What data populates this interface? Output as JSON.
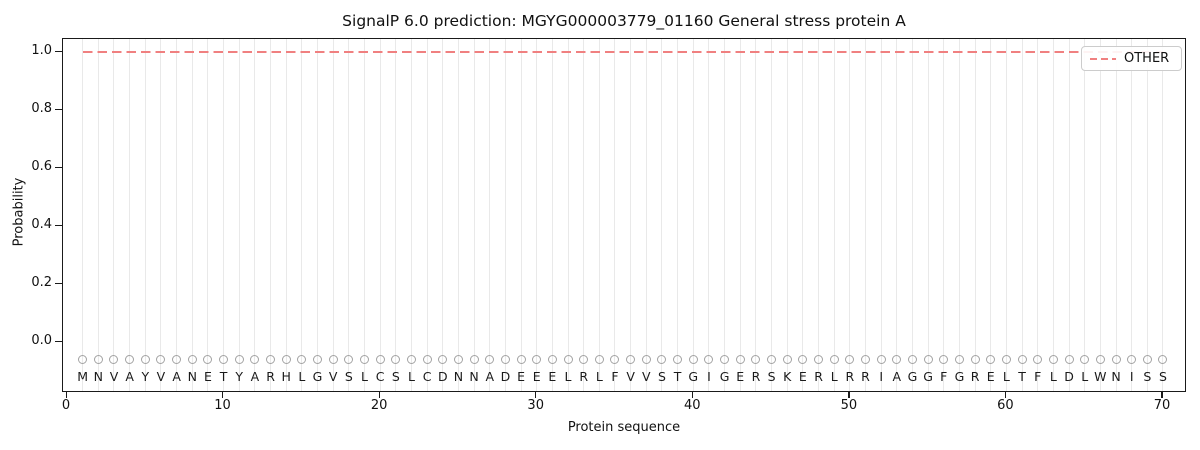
{
  "chart_data": {
    "type": "line",
    "title": "SignalP 6.0 prediction: MGYG000003779_01160 General stress protein A",
    "xlabel": "Protein sequence",
    "ylabel": "Probability",
    "x_ticks": [
      0,
      10,
      20,
      30,
      40,
      50,
      60,
      70
    ],
    "x_tick_labels": [
      "0",
      "10",
      "20",
      "30",
      "40",
      "50",
      "60",
      "70"
    ],
    "y_ticks": [
      0.0,
      0.2,
      0.4,
      0.6,
      0.8,
      1.0
    ],
    "y_tick_labels": [
      "0.0",
      "0.2",
      "0.4",
      "0.6",
      "0.8",
      "1.0"
    ],
    "xlim": [
      -0.3,
      71.5
    ],
    "ylim": [
      -0.18,
      1.03
    ],
    "grid": {
      "vertical_per_residue": true,
      "horizontal": false
    },
    "legend": {
      "position": "upper right",
      "entries": [
        {
          "label": "OTHER",
          "style": "dashed",
          "color": "#f08080"
        }
      ]
    },
    "series": [
      {
        "name": "OTHER",
        "style": "dashed",
        "color": "#f08080",
        "x_range": [
          1,
          70
        ],
        "y_constant": 1.0,
        "description": "Constant OTHER probability of 1.0 across all 70 residues (no signal peptide predicted)"
      }
    ],
    "sequence": "MNVAYVANETYARHLGVSLCSLCDNNADEEELRLFVVSTGIGERSKERLRRIAGGFGRELTFLDLWNISS",
    "sequence_length": 70,
    "residue_markers": {
      "shape": "open-circle",
      "y_value": -0.06,
      "color": "#a3a3a3"
    },
    "colors": {
      "other_line": "#f08080",
      "grid": "#e9e9e9",
      "spine": "#1a1a1a",
      "text": "#111111",
      "marker_outline": "#a3a3a3",
      "legend_border": "#cccccc",
      "background": "#ffffff"
    }
  }
}
